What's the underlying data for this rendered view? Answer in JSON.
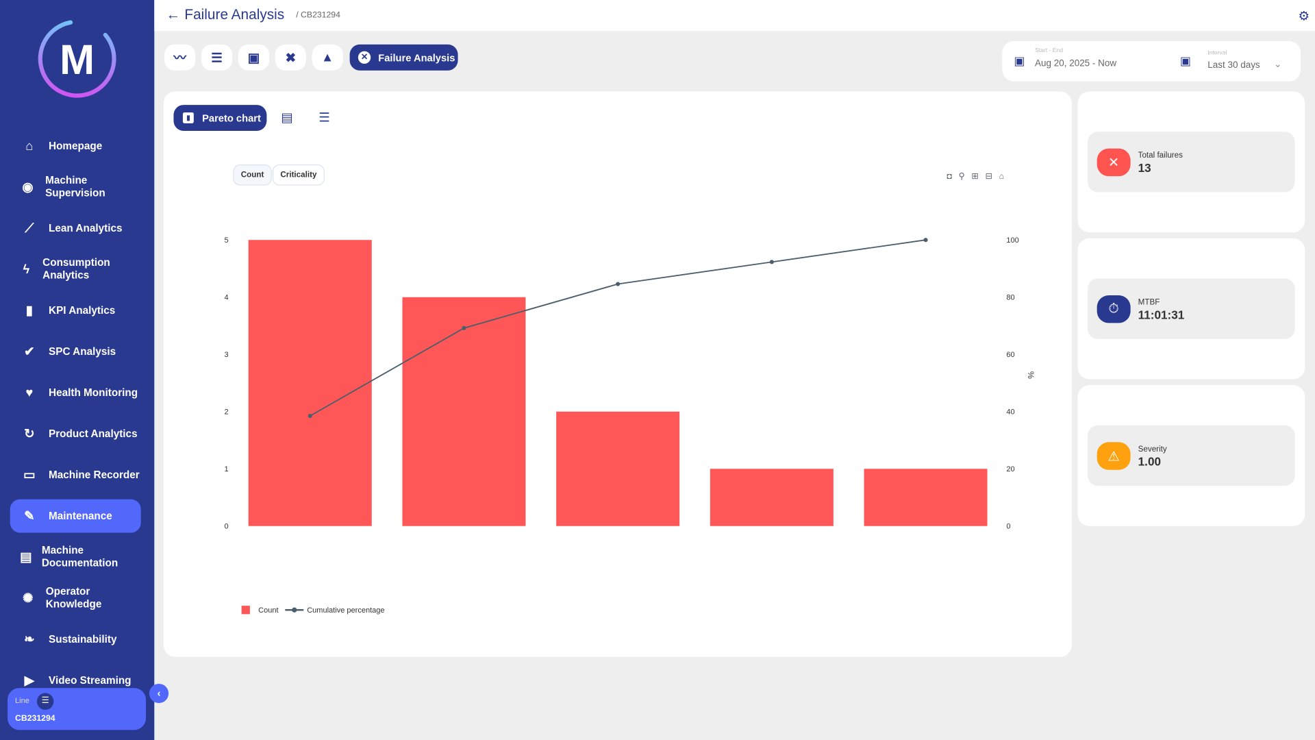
{
  "header": {
    "title": "Failure Analysis",
    "breadcrumb": "/ CB231294"
  },
  "sidebar": {
    "logo_letter": "M",
    "items": [
      {
        "label": "Homepage",
        "icon": "home-icon",
        "glyph": "⌂"
      },
      {
        "label": "Machine Supervision",
        "icon": "eye-icon",
        "glyph": "◉"
      },
      {
        "label": "Lean Analytics",
        "icon": "trend-icon",
        "glyph": "⟋"
      },
      {
        "label": "Consumption Analytics",
        "icon": "bolt-icon",
        "glyph": "ϟ"
      },
      {
        "label": "KPI Analytics",
        "icon": "bar-chart-icon",
        "glyph": "▮"
      },
      {
        "label": "SPC Analysis",
        "icon": "check-icon",
        "glyph": "✔"
      },
      {
        "label": "Health Monitoring",
        "icon": "heart-icon",
        "glyph": "♥"
      },
      {
        "label": "Product Analytics",
        "icon": "refresh-icon",
        "glyph": "↻"
      },
      {
        "label": "Machine Recorder",
        "icon": "recorder-icon",
        "glyph": "▭"
      },
      {
        "label": "Maintenance",
        "icon": "wrench-icon",
        "glyph": "✎",
        "active": true
      },
      {
        "label": "Machine Documentation",
        "icon": "document-icon",
        "glyph": "▤"
      },
      {
        "label": "Operator Knowledge",
        "icon": "brain-icon",
        "glyph": "✺"
      },
      {
        "label": "Sustainability",
        "icon": "leaf-icon",
        "glyph": "❧"
      },
      {
        "label": "Video Streaming",
        "icon": "play-icon",
        "glyph": "▶"
      }
    ],
    "line": {
      "label": "Line",
      "value": "CB231294"
    }
  },
  "toolbar": {
    "active_label": "Failure Analysis"
  },
  "date_filter": {
    "label": "Start - End",
    "value": "Aug 20, 2025 - Now"
  },
  "interval_filter": {
    "label": "Interval",
    "value": "Last 30 days"
  },
  "chart_tabs": {
    "pareto_label": "Pareto chart"
  },
  "toggle": {
    "count": "Count",
    "criticality": "Criticality"
  },
  "kpis": [
    {
      "label": "Total failures",
      "value": "13",
      "color": "#ff5450"
    },
    {
      "label": "MTBF",
      "value": "11:01:31",
      "color": "#2a3990"
    },
    {
      "label": "Severity",
      "value": "1.00",
      "color": "#fda10f"
    }
  ],
  "chart_data": {
    "type": "bar",
    "categories": [
      "",
      "",
      "",
      "",
      ""
    ],
    "series": [
      {
        "name": "Count",
        "type": "bar",
        "values": [
          5,
          4,
          2,
          1,
          1
        ],
        "color": "#ff5757"
      },
      {
        "name": "Cumulative percentage",
        "type": "line",
        "axis": "right",
        "values": [
          38.5,
          69.2,
          84.6,
          92.3,
          100
        ],
        "color": "#4b5e6c"
      }
    ],
    "ylim": [
      0,
      5
    ],
    "yticks": [
      0,
      1,
      2,
      3,
      4,
      5
    ],
    "y2lim": [
      0,
      100
    ],
    "y2ticks": [
      0,
      20,
      40,
      60,
      80,
      100
    ],
    "y2label": "%",
    "legend": "bottom-left",
    "grid": false
  }
}
